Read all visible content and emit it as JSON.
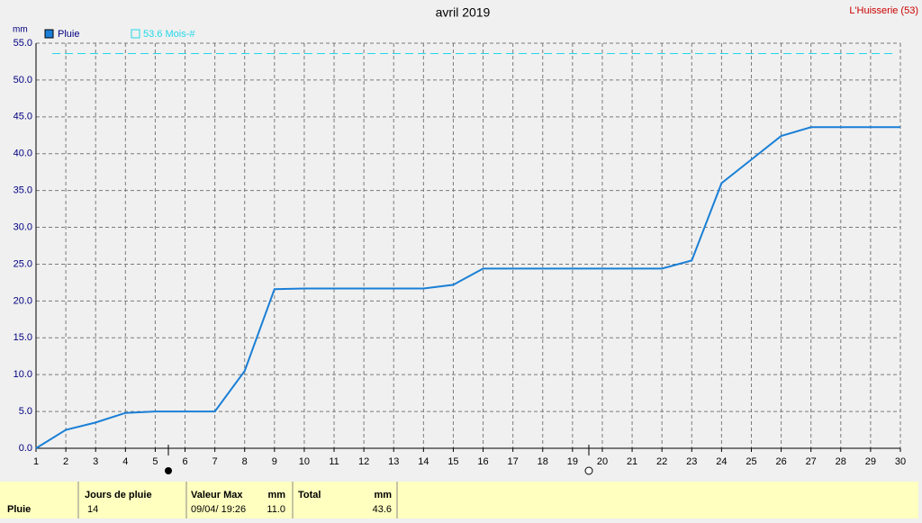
{
  "chart_data": {
    "type": "line",
    "title": "avril 2019",
    "station": "L'Huisserie (53)",
    "y_unit": "mm",
    "x": [
      1,
      2,
      3,
      4,
      5,
      6,
      7,
      8,
      9,
      10,
      11,
      12,
      13,
      14,
      15,
      16,
      17,
      18,
      19,
      20,
      21,
      22,
      23,
      24,
      25,
      26,
      27,
      28,
      29,
      30
    ],
    "series": [
      {
        "name": "Pluie",
        "color": "#1a7fd6",
        "values": [
          0,
          2.5,
          3.5,
          4.8,
          5.0,
          5.0,
          5.0,
          10.5,
          21.6,
          21.7,
          21.7,
          21.7,
          21.7,
          21.7,
          22.2,
          24.4,
          24.4,
          24.4,
          24.4,
          24.4,
          24.4,
          24.4,
          25.5,
          36.0,
          39.2,
          42.4,
          43.6,
          43.6,
          43.6,
          43.6
        ]
      }
    ],
    "reference_line": {
      "name": "53.6 Mois-#",
      "value": 53.6,
      "color": "#22d8e8"
    },
    "xlim": [
      1,
      30
    ],
    "xticks": [
      1,
      2,
      3,
      4,
      5,
      6,
      7,
      8,
      9,
      10,
      11,
      12,
      13,
      14,
      15,
      16,
      17,
      18,
      19,
      20,
      21,
      22,
      23,
      24,
      25,
      26,
      27,
      28,
      29,
      30
    ],
    "ylim": [
      0,
      55
    ],
    "yticks": [
      {
        "value": 0,
        "label": "0.0"
      },
      {
        "value": 5,
        "label": "5.0"
      },
      {
        "value": 10,
        "label": "10.0"
      },
      {
        "value": 15,
        "label": "15.0"
      },
      {
        "value": 20,
        "label": "20.0"
      },
      {
        "value": 25,
        "label": "25.0"
      },
      {
        "value": 30,
        "label": "30.0"
      },
      {
        "value": 35,
        "label": "35.0"
      },
      {
        "value": 40,
        "label": "40.0"
      },
      {
        "value": 45,
        "label": "45.0"
      },
      {
        "value": 50,
        "label": "50.0"
      },
      {
        "value": 55,
        "label": "55.0"
      }
    ],
    "grid": true
  },
  "footer": {
    "row_label": "Pluie",
    "columns": [
      {
        "header": "Jours de pluie",
        "value": "14"
      },
      {
        "header": "Valeur Max",
        "unit": "mm",
        "date": "09/04/ 19:26",
        "value": "11.0"
      },
      {
        "header": "Total",
        "unit": "mm",
        "value": "43.6"
      }
    ]
  }
}
